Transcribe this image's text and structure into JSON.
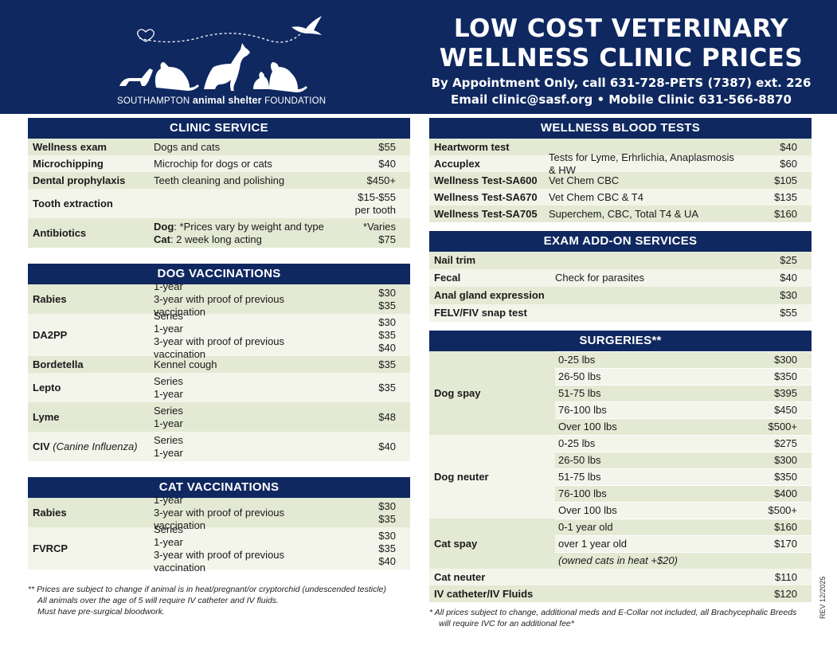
{
  "header": {
    "org_prefix": "SOUTHAMPTON",
    "org_middle": "animal shelter",
    "org_suffix": "FOUNDATION",
    "title": [
      "LOW COST VETERINARY",
      "WELLNESS CLINIC PRICES"
    ],
    "subtitle": [
      "By Appointment Only, call 631-728-PETS (7387) ext. 226",
      "Email clinic@sasf.org • Mobile Clinic 631-566-8870"
    ]
  },
  "left": {
    "sections": [
      {
        "title": "CLINIC SERVICE",
        "rows": [
          {
            "name": "Wellness exam",
            "desc": [
              "Dogs and cats"
            ],
            "price": [
              "$55"
            ]
          },
          {
            "name": "Microchipping",
            "desc": [
              "Microchip for dogs or cats"
            ],
            "price": [
              "$40"
            ]
          },
          {
            "name": "Dental prophylaxis",
            "desc": [
              "Teeth cleaning and polishing"
            ],
            "price": [
              "$450+"
            ]
          },
          {
            "name": "Tooth extraction",
            "price": [
              "$15-$55",
              "per tooth"
            ]
          },
          {
            "name": "Antibiotics",
            "desc": [
              {
                "bold": "Dog",
                "text": ": *Prices vary by weight and type"
              },
              {
                "bold": "Cat",
                "text": ": 2 week long acting"
              }
            ],
            "price": [
              "*Varies",
              "$75"
            ]
          }
        ]
      },
      {
        "title": "DOG VACCINATIONS",
        "rows": [
          {
            "name": "Rabies",
            "desc": [
              "1-year",
              "3-year with proof of previous vaccination"
            ],
            "price": [
              "$30",
              "$35"
            ]
          },
          {
            "name": "DA2PP",
            "desc": [
              "Series",
              "1-year",
              "3-year with proof of previous vaccination"
            ],
            "price": [
              "$30",
              "$35",
              "$40"
            ]
          },
          {
            "name": "Bordetella",
            "desc": [
              "Kennel cough"
            ],
            "price": [
              "$35"
            ]
          },
          {
            "name": "Lepto",
            "desc": [
              "Series",
              "1-year"
            ],
            "price": [
              "$35"
            ]
          },
          {
            "name": "Lyme",
            "desc": [
              "Series",
              "1-year"
            ],
            "price": [
              "$48"
            ]
          },
          {
            "name": "CIV",
            "name_note": "(Canine Influenza)",
            "desc": [
              "Series",
              "1-year"
            ],
            "price": [
              "$40"
            ]
          }
        ]
      },
      {
        "title": "CAT VACCINATIONS",
        "rows": [
          {
            "name": "Rabies",
            "desc": [
              "1-year",
              "3-year with proof of previous vaccination"
            ],
            "price": [
              "$30",
              "$35"
            ]
          },
          {
            "name": "FVRCP",
            "desc": [
              "Series",
              "1-year",
              "3-year with proof of previous vaccination"
            ],
            "price": [
              "$30",
              "$35",
              "$40"
            ]
          }
        ]
      }
    ],
    "footnote": [
      "** Prices are subject to change if animal is in heat/pregnant/or cryptorchid  (undescended testicle)",
      "All animals over the age of 5 will require IV catheter and IV fluids.",
      "Must have pre-surgical bloodwork."
    ]
  },
  "right": {
    "sections": [
      {
        "title": "WELLNESS BLOOD TESTS",
        "rows": [
          {
            "name": "Heartworm test",
            "price": [
              "$40"
            ]
          },
          {
            "name": "Accuplex",
            "desc": [
              "Tests for Lyme, Erhrlichia, Anaplasmosis & HW"
            ],
            "price": [
              "$60"
            ]
          },
          {
            "name": "Wellness Test-SA600",
            "desc": [
              "Vet Chem CBC"
            ],
            "price": [
              "$105"
            ]
          },
          {
            "name": "Wellness Test-SA670",
            "desc": [
              "Vet Chem CBC & T4"
            ],
            "price": [
              "$135"
            ]
          },
          {
            "name": "Wellness Test-SA705",
            "desc": [
              "Superchem, CBC, Total T4 & UA"
            ],
            "price": [
              "$160"
            ]
          }
        ]
      },
      {
        "title": "EXAM ADD-ON SERVICES",
        "rows": [
          {
            "name": "Nail trim",
            "price": [
              "$25"
            ]
          },
          {
            "name": "Fecal",
            "desc": [
              "Check for parasites"
            ],
            "price": [
              "$40"
            ]
          },
          {
            "name": "Anal gland expression",
            "price": [
              "$30"
            ]
          },
          {
            "name": "FELV/FIV snap test",
            "price": [
              "$55"
            ]
          }
        ]
      },
      {
        "title": "SURGERIES**",
        "rows": [
          {
            "name": "Dog spay",
            "items": [
              {
                "desc": "0-25 lbs",
                "price": "$300"
              },
              {
                "desc": "26-50 lbs",
                "price": "$350"
              },
              {
                "desc": "51-75 lbs",
                "price": "$395"
              },
              {
                "desc": "76-100 lbs",
                "price": "$450"
              },
              {
                "desc": "Over 100 lbs",
                "price": "$500+"
              }
            ]
          },
          {
            "name": "Dog neuter",
            "items": [
              {
                "desc": "0-25 lbs",
                "price": "$275"
              },
              {
                "desc": "26-50 lbs",
                "price": "$300"
              },
              {
                "desc": "51-75 lbs",
                "price": "$350"
              },
              {
                "desc": "76-100 lbs",
                "price": "$400"
              },
              {
                "desc": "Over 100 lbs",
                "price": "$500+"
              }
            ]
          },
          {
            "name": "Cat spay",
            "items": [
              {
                "desc": "0-1 year old",
                "price": "$160"
              },
              {
                "desc": "over 1 year old",
                "price": "$170"
              }
            ],
            "note": "(owned cats in heat +$20)"
          },
          {
            "name": "Cat neuter",
            "price": [
              "$110"
            ]
          },
          {
            "name": "IV catheter/IV Fluids",
            "price": [
              "$120"
            ]
          }
        ]
      }
    ],
    "footnote": [
      "* All prices subject to change, additional meds and E-Collar not included, all Brachycephalic Breeds",
      "will require IVC for an additional fee*"
    ]
  },
  "revision": "REV 12/2025"
}
